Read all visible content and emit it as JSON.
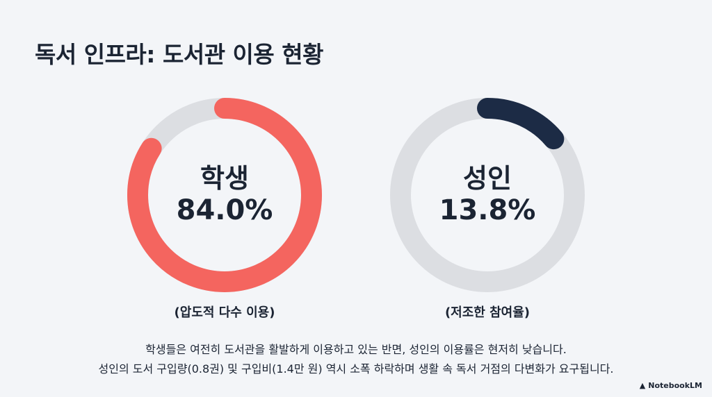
{
  "title": "독서 인프라: 도서관 이용 현황",
  "chart_data": {
    "type": "pie",
    "charts": [
      {
        "label": "학생",
        "value": 84.0,
        "value_label": "84.0%",
        "caption": "(압도적 다수 이용)",
        "color": "#f4655f",
        "track_color": "#dcdee2"
      },
      {
        "label": "성인",
        "value": 13.8,
        "value_label": "13.8%",
        "caption": "(저조한 참여율)",
        "color": "#1c2b45",
        "track_color": "#dcdee2"
      }
    ]
  },
  "summary": {
    "line1": "학생들은 여전히 도서관을 활발하게 이용하고 있는 반면, 성인의 이용률은 현저히 낮습니다.",
    "line2": "성인의 도서 구입량(0.8권) 및 구입비(1.4만 원) 역시 소폭 하락하며 생활 속 독서 거점의 다변화가 요구됩니다."
  },
  "brand": {
    "label": "NotebookLM",
    "icon": "notebooklm-logo-icon"
  }
}
